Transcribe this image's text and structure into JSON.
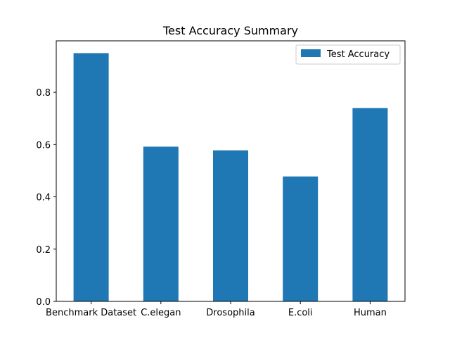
{
  "chart_data": {
    "type": "bar",
    "title": "Test Accuracy Summary",
    "xlabel": "",
    "ylabel": "",
    "categories": [
      "Benchmark Dataset",
      "C.elegan",
      "Drosophila",
      "E.coli",
      "Human"
    ],
    "series": [
      {
        "name": "Test Accuracy",
        "values": [
          0.95,
          0.592,
          0.578,
          0.478,
          0.74
        ]
      }
    ],
    "ylim": [
      0,
      0.997
    ],
    "yticks": [
      "0.0",
      "0.2",
      "0.4",
      "0.6",
      "0.8"
    ],
    "yticks_values": [
      0,
      0.2,
      0.4,
      0.6,
      0.8
    ],
    "grid": false,
    "legend_position": "top-right",
    "bar_color": "#1f77b4"
  }
}
